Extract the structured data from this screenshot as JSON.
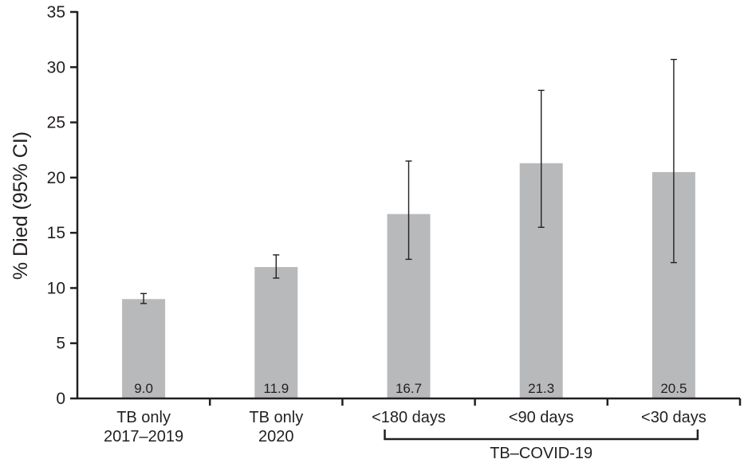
{
  "chart_data": {
    "type": "bar",
    "title": "",
    "ylabel": "% Died (95% CI)",
    "xlabel": "",
    "ylim": [
      0,
      35
    ],
    "yticks": [
      0,
      5,
      10,
      15,
      20,
      25,
      30,
      35
    ],
    "grid": false,
    "categories": [
      [
        "TB only",
        "2017–2019"
      ],
      [
        "TB only",
        "2020"
      ],
      [
        "<180 days"
      ],
      [
        "<90 days"
      ],
      [
        "<30 days"
      ]
    ],
    "values": [
      9.0,
      11.9,
      16.7,
      21.3,
      20.5
    ],
    "value_labels": [
      "9.0",
      "11.9",
      "16.7",
      "21.3",
      "20.5"
    ],
    "ci_lower": [
      8.6,
      10.9,
      12.6,
      15.5,
      12.3
    ],
    "ci_upper": [
      9.5,
      13.0,
      21.5,
      27.9,
      30.7
    ],
    "bar_color": "#b8b9bb",
    "group_bracket": {
      "label": "TB–COVID-19",
      "categories": [
        2,
        3,
        4
      ]
    }
  }
}
